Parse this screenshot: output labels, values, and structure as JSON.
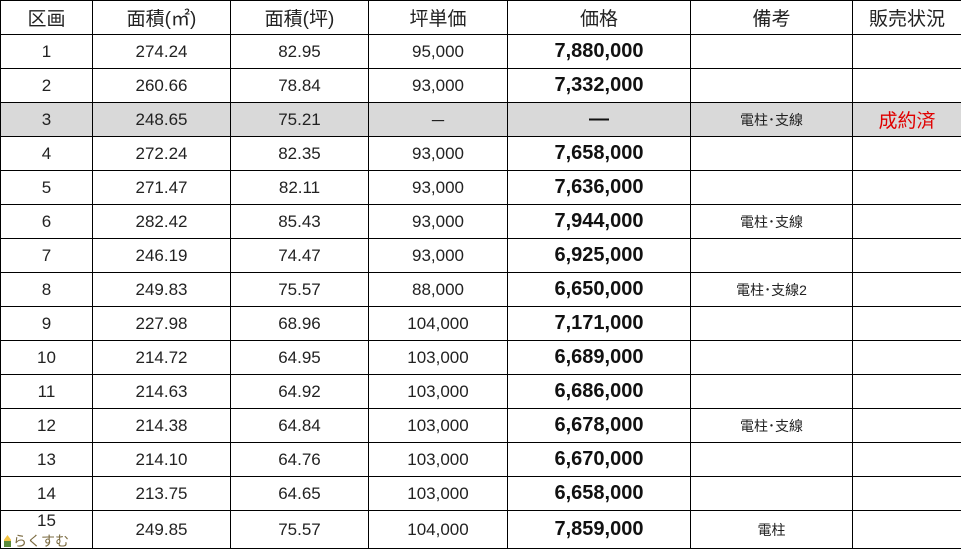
{
  "headers": [
    "区画",
    "面積(㎡)",
    "面積(坪)",
    "坪単価",
    "価格",
    "備考",
    "販売状況"
  ],
  "rows": [
    {
      "lot": "1",
      "area_m2": "274.24",
      "area_tsubo": "82.95",
      "unit_price": "95,000",
      "price": "7,880,000",
      "note": "",
      "status": ""
    },
    {
      "lot": "2",
      "area_m2": "260.66",
      "area_tsubo": "78.84",
      "unit_price": "93,000",
      "price": "7,332,000",
      "note": "",
      "status": ""
    },
    {
      "lot": "3",
      "area_m2": "248.65",
      "area_tsubo": "75.21",
      "unit_price": "－",
      "price": "―",
      "note": "電柱･支線",
      "status": "成約済"
    },
    {
      "lot": "4",
      "area_m2": "272.24",
      "area_tsubo": "82.35",
      "unit_price": "93,000",
      "price": "7,658,000",
      "note": "",
      "status": ""
    },
    {
      "lot": "5",
      "area_m2": "271.47",
      "area_tsubo": "82.11",
      "unit_price": "93,000",
      "price": "7,636,000",
      "note": "",
      "status": ""
    },
    {
      "lot": "6",
      "area_m2": "282.42",
      "area_tsubo": "85.43",
      "unit_price": "93,000",
      "price": "7,944,000",
      "note": "電柱･支線",
      "status": ""
    },
    {
      "lot": "7",
      "area_m2": "246.19",
      "area_tsubo": "74.47",
      "unit_price": "93,000",
      "price": "6,925,000",
      "note": "",
      "status": ""
    },
    {
      "lot": "8",
      "area_m2": "249.83",
      "area_tsubo": "75.57",
      "unit_price": "88,000",
      "price": "6,650,000",
      "note": "電柱･支線2",
      "status": ""
    },
    {
      "lot": "9",
      "area_m2": "227.98",
      "area_tsubo": "68.96",
      "unit_price": "104,000",
      "price": "7,171,000",
      "note": "",
      "status": ""
    },
    {
      "lot": "10",
      "area_m2": "214.72",
      "area_tsubo": "64.95",
      "unit_price": "103,000",
      "price": "6,689,000",
      "note": "",
      "status": ""
    },
    {
      "lot": "11",
      "area_m2": "214.63",
      "area_tsubo": "64.92",
      "unit_price": "103,000",
      "price": "6,686,000",
      "note": "",
      "status": ""
    },
    {
      "lot": "12",
      "area_m2": "214.38",
      "area_tsubo": "64.84",
      "unit_price": "103,000",
      "price": "6,678,000",
      "note": "電柱･支線",
      "status": ""
    },
    {
      "lot": "13",
      "area_m2": "214.10",
      "area_tsubo": "64.76",
      "unit_price": "103,000",
      "price": "6,670,000",
      "note": "",
      "status": ""
    },
    {
      "lot": "14",
      "area_m2": "213.75",
      "area_tsubo": "64.65",
      "unit_price": "103,000",
      "price": "6,658,000",
      "note": "",
      "status": ""
    },
    {
      "lot": "15",
      "area_m2": "249.85",
      "area_tsubo": "75.57",
      "unit_price": "104,000",
      "price": "7,859,000",
      "note": "電柱",
      "status": ""
    }
  ],
  "colors": {
    "sold_row_bg": "#d9d9d9",
    "sold_status": "#e00000"
  },
  "watermark": "らくすむ"
}
